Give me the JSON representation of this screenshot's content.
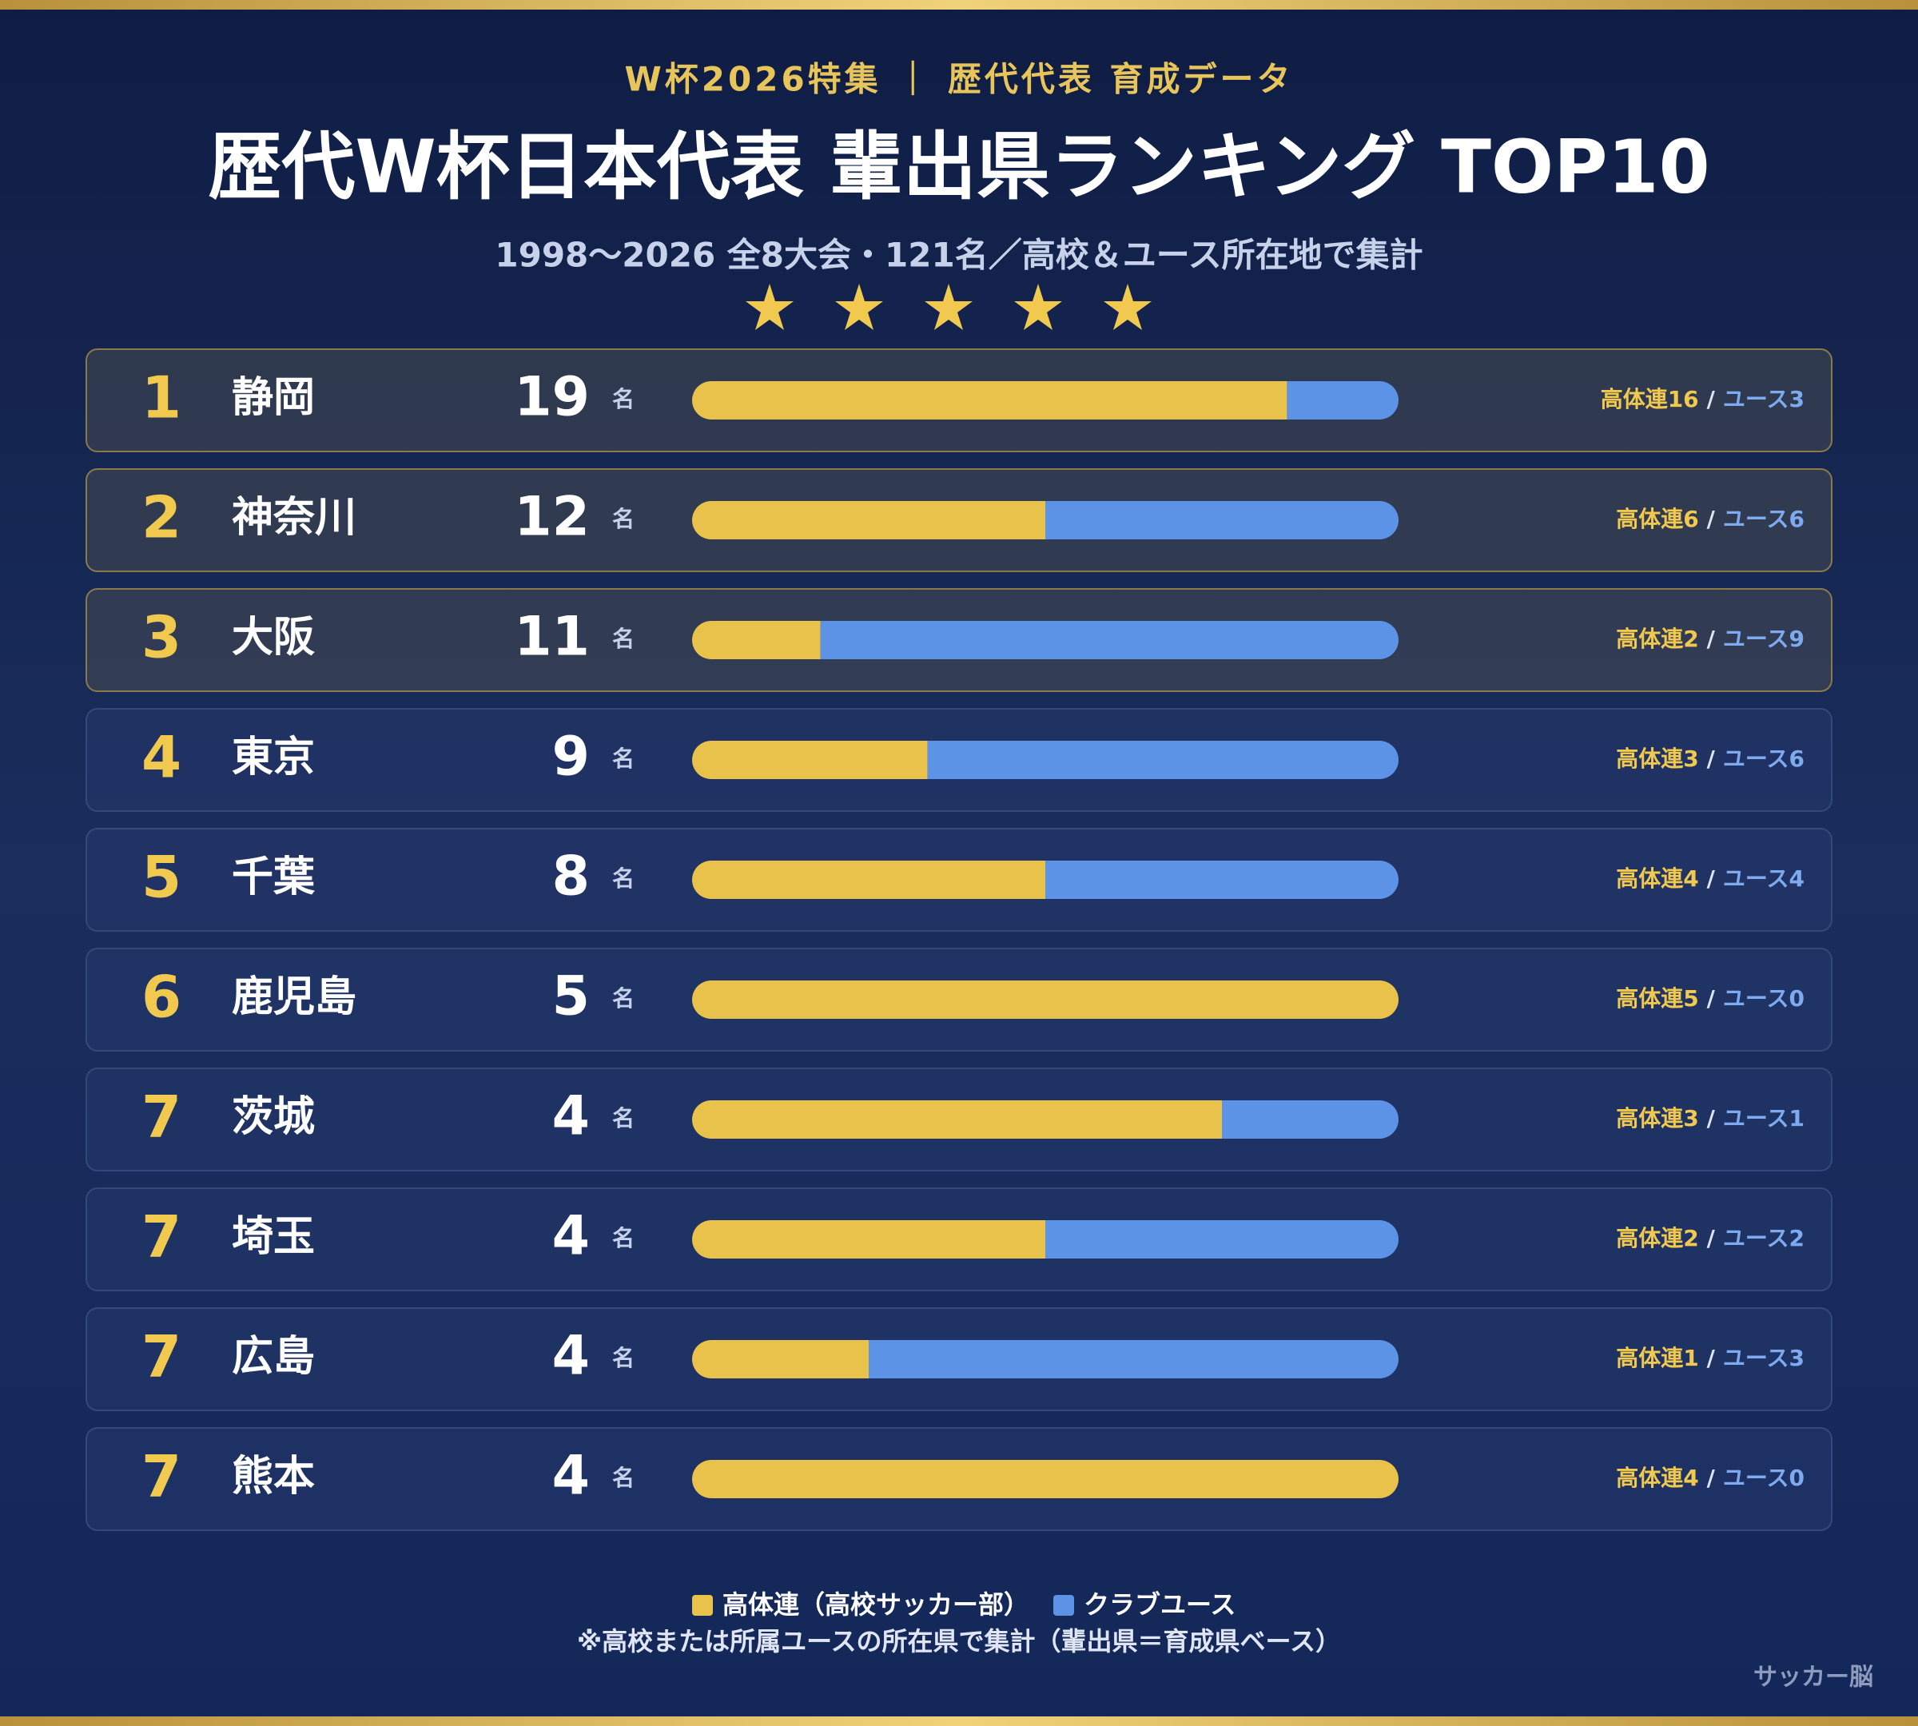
{
  "chart_data": {
    "type": "stacked-bar-100",
    "kicker": "W杯2026特集 ｜ 歴代代表 育成データ",
    "title": "歴代W杯日本代表 輩出県ランキング TOP10",
    "subtitle": "1998〜2026 全8大会・121名／高校＆ユース所在地で集計",
    "unit": "名",
    "label_separator": "/",
    "ranks": [
      1,
      2,
      3,
      4,
      5,
      6,
      7,
      7,
      7,
      7
    ],
    "categories": [
      "静岡",
      "神奈川",
      "大阪",
      "東京",
      "千葉",
      "鹿児島",
      "茨城",
      "埼玉",
      "広島",
      "熊本"
    ],
    "totals": [
      19,
      12,
      11,
      9,
      8,
      5,
      4,
      4,
      4,
      4
    ],
    "series": [
      {
        "name": "高体連（高校サッカー部）",
        "color": "#e9c24b",
        "values": [
          16,
          6,
          2,
          3,
          4,
          5,
          3,
          2,
          1,
          4
        ],
        "value_labels": [
          "高体連16",
          "高体連6",
          "高体連2",
          "高体連3",
          "高体連4",
          "高体連5",
          "高体連3",
          "高体連2",
          "高体連1",
          "高体連4"
        ]
      },
      {
        "name": "クラブユース",
        "color": "#5d93e6",
        "values": [
          3,
          6,
          9,
          6,
          4,
          0,
          1,
          2,
          3,
          0
        ],
        "value_labels": [
          "ユース3",
          "ユース6",
          "ユース9",
          "ユース6",
          "ユース4",
          "ユース0",
          "ユース1",
          "ユース2",
          "ユース3",
          "ユース0"
        ]
      }
    ],
    "note": "※高校または所属ユースの所在県で集計（輩出県＝育成県ベース）",
    "source": "サッカー脳"
  }
}
